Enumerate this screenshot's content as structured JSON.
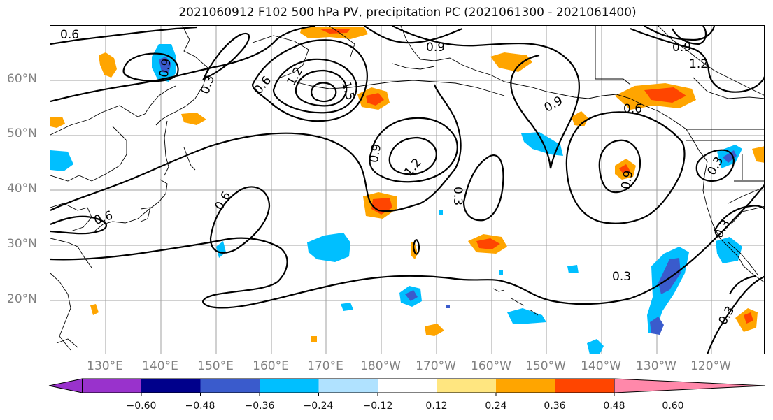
{
  "title": "2021060912 F102 500 hPa PV, precipitation PC (2021061300 - 2021061400)",
  "lat_labels": [
    "60°N",
    "50°N",
    "40°N",
    "30°N",
    "20°N"
  ],
  "lon_labels": [
    "130°E",
    "140°E",
    "150°E",
    "160°E",
    "170°E",
    "180°W",
    "170°W",
    "160°W",
    "150°W",
    "140°W",
    "130°W",
    "120°W"
  ],
  "contour_labels": [
    "0.6",
    "0.9",
    "0.3",
    "0.6",
    "1.2",
    "1.5",
    "0.9",
    "0.9",
    "1.2",
    "0.3",
    "0.9",
    "0.6",
    "0.9",
    "1.2",
    "0.9",
    "0.6",
    "0.6",
    "0.3",
    "0.3",
    "0.3",
    "0.3"
  ],
  "colorbar": {
    "ticks": [
      "−0.60",
      "−0.48",
      "−0.36",
      "−0.24",
      "−0.12",
      "0.12",
      "0.24",
      "0.36",
      "0.48",
      "0.60"
    ],
    "colors": [
      "#9932CC",
      "#00008B",
      "#3A5BCC",
      "#00BFFF",
      "#B0E2FF",
      "#FFFFFF",
      "#FFE680",
      "#FFA500",
      "#FF4500",
      "#B22222",
      "#FF88AA"
    ]
  }
}
